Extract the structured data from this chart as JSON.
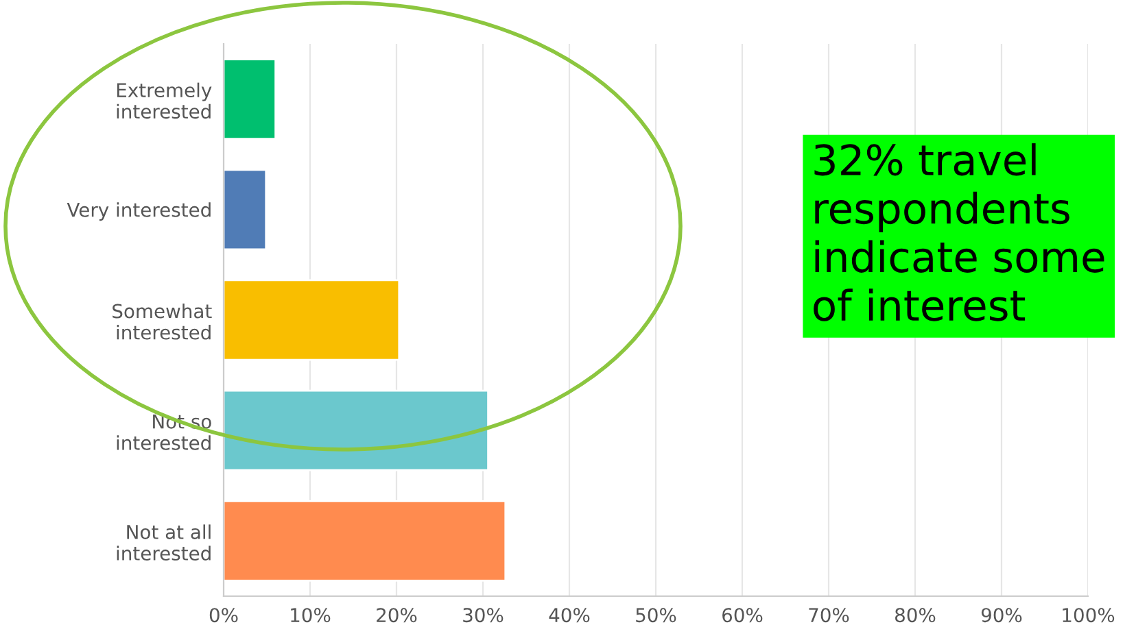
{
  "chart_data": {
    "type": "bar",
    "orientation": "horizontal",
    "categories": [
      "Extremely\ninterested",
      "Very interested",
      "Somewhat\ninterested",
      "Not so\ninterested",
      "Not at all\ninterested"
    ],
    "values": [
      6.0,
      4.9,
      20.3,
      30.6,
      32.6
    ],
    "colors": [
      "#00bf6f",
      "#507cb6",
      "#f9be00",
      "#6bc8cd",
      "#ff8b4f"
    ],
    "xlim": [
      0,
      100
    ],
    "xticks": [
      {
        "value": 0,
        "label": "0%"
      },
      {
        "value": 10,
        "label": "10%"
      },
      {
        "value": 20,
        "label": "20%"
      },
      {
        "value": 30,
        "label": "30%"
      },
      {
        "value": 40,
        "label": "40%"
      },
      {
        "value": 50,
        "label": "50%"
      },
      {
        "value": 60,
        "label": "60%"
      },
      {
        "value": 70,
        "label": "70%"
      },
      {
        "value": 80,
        "label": "80%"
      },
      {
        "value": 90,
        "label": "90%"
      },
      {
        "value": 100,
        "label": "100%"
      }
    ],
    "grid": "x",
    "annotations": [
      "32% travel respondents indicate some of interest"
    ]
  }
}
